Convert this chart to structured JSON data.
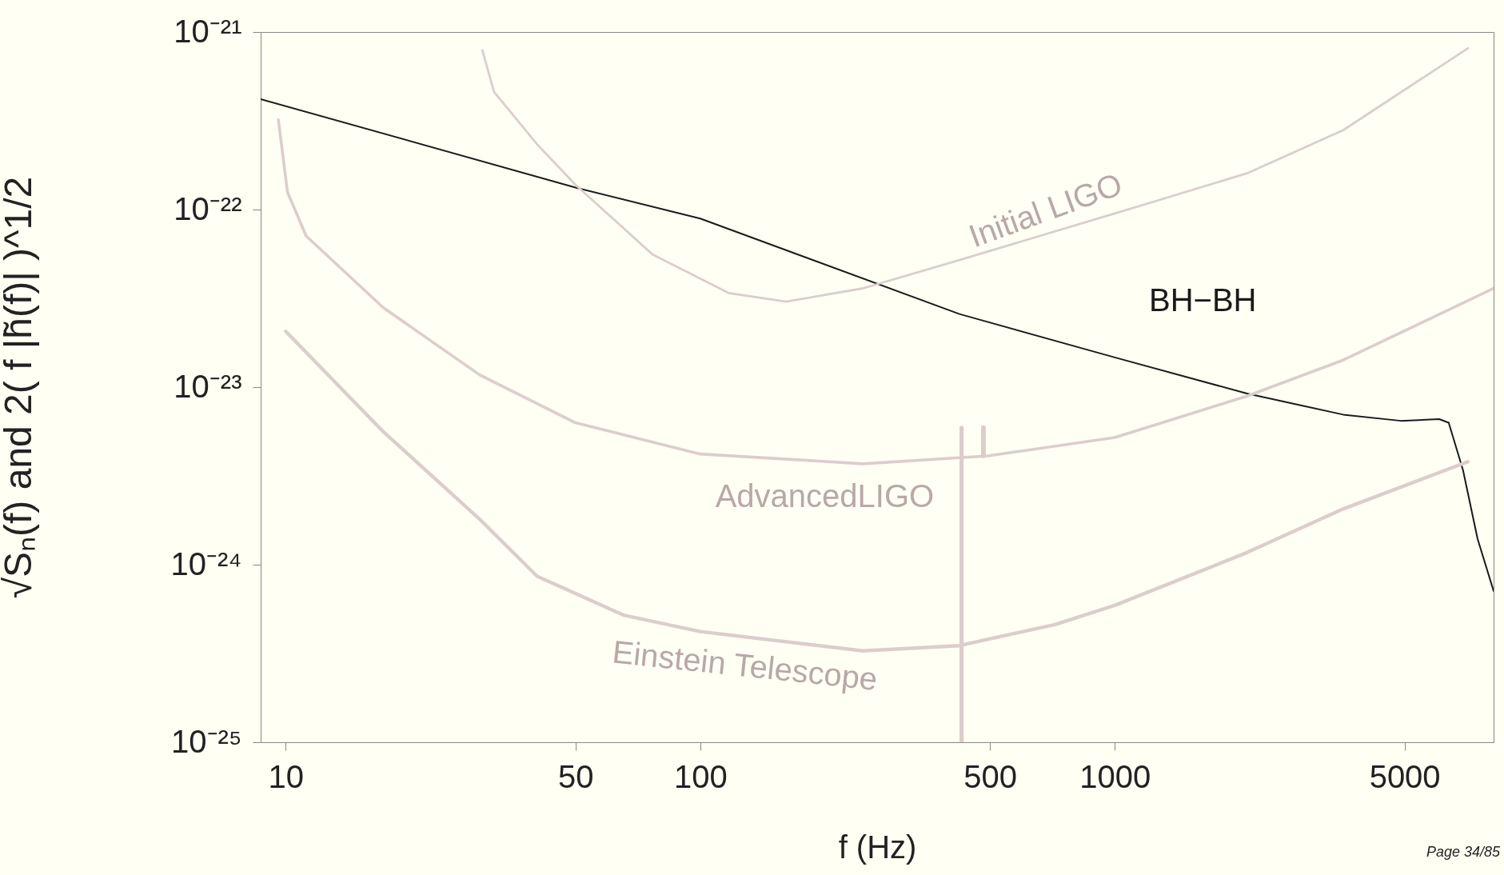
{
  "chart_data": {
    "type": "line",
    "xlabel": "f (Hz)",
    "ylabel": "√Sₙ(f)  and  2( f |h̃(f)| )^1/2",
    "log": "xy",
    "grid": false,
    "marker": "none",
    "line_style": "solid",
    "xlim": [
      8.7,
      8200
    ],
    "xticks": [
      10,
      50,
      100,
      500,
      1000,
      5000
    ],
    "ylim": [
      1e-25,
      1e-21
    ],
    "yticks": [
      {
        "value": 1e-25,
        "label": "10⁻²⁵"
      },
      {
        "value": 1e-24,
        "label": "10⁻²⁴"
      },
      {
        "value": 1e-23,
        "label": "10⁻²³"
      },
      {
        "value": 1e-22,
        "label": "10⁻²²"
      },
      {
        "value": 1e-21,
        "label": "10⁻²¹"
      }
    ],
    "series": [
      {
        "name": "BH−BH",
        "color": "#1a1a1a",
        "x": [
          8.7,
          50,
          100,
          422,
          1000,
          2084,
          3556,
          4900,
          6060,
          6390,
          6920,
          7500,
          8200
        ],
        "values": [
          4.19e-22,
          1.33e-22,
          8.9e-23,
          2.58e-23,
          1.47e-23,
          9.2e-24,
          7e-24,
          6.46e-24,
          6.6e-24,
          6.3e-24,
          3.4e-24,
          1.4e-24,
          7.1e-25
        ]
      },
      {
        "name": "Initial LIGO",
        "color": "#dccdcd",
        "x": [
          29.8,
          31.8,
          40.4,
          50,
          76.6,
          117,
          161,
          247,
          422,
          1000,
          2084,
          3556,
          7110
        ],
        "values": [
          7.9e-22,
          4.6e-22,
          2.33e-22,
          1.38e-22,
          5.6e-23,
          3.39e-23,
          3.03e-23,
          3.6e-23,
          5.2e-23,
          9.5e-23,
          1.6e-22,
          2.8e-22,
          8.1e-22
        ]
      },
      {
        "name": "AdvancedLIGO",
        "color": "#dccdcd",
        "x": [
          9.6,
          10.1,
          11.2,
          17.2,
          29.4,
          50,
          100,
          247,
          494,
          1000,
          2084,
          3556,
          8200
        ],
        "values": [
          3.2e-22,
          1.25e-22,
          7.1e-23,
          2.8e-23,
          1.17e-23,
          6.3e-24,
          4.2e-24,
          3.7e-24,
          4.1e-24,
          5.2e-24,
          8.9e-24,
          1.42e-23,
          3.6e-23
        ]
      },
      {
        "name": "Einstein Telescope",
        "color": "#dccdcd",
        "x": [
          10,
          17.2,
          29.4,
          40.4,
          65.3,
          100,
          247,
          422,
          718,
          1000,
          2084,
          3556,
          7110
        ],
        "values": [
          2.06e-23,
          5.6e-24,
          1.8e-24,
          8.6e-25,
          5.2e-25,
          4.2e-25,
          3.27e-25,
          3.5e-25,
          4.6e-25,
          5.9e-25,
          1.17e-24,
          2.06e-24,
          3.8e-24
        ]
      },
      {
        "color": "#dccdcd",
        "x": [
          427,
          427
        ],
        "values": [
          5.9e-24,
          1e-25
        ]
      },
      {
        "color": "#dccdcd",
        "x": [
          482,
          482
        ],
        "values": [
          5.9e-24,
          4.1e-24
        ]
      }
    ],
    "annotations": [
      "Page 34/85"
    ]
  }
}
